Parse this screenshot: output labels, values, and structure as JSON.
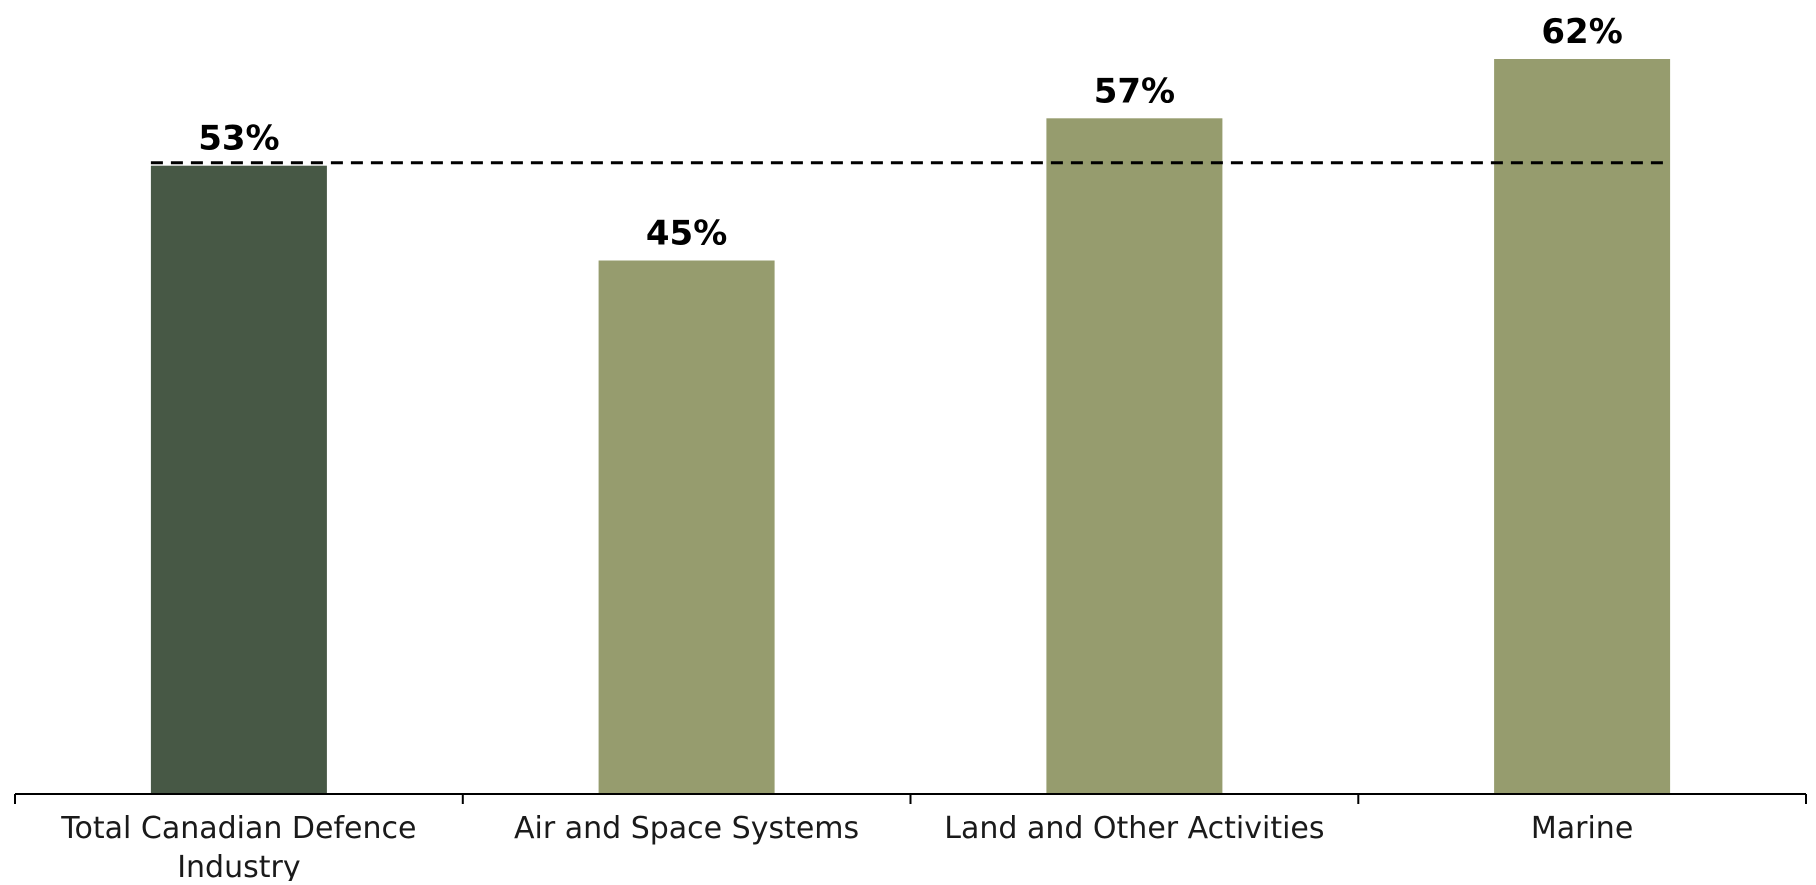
{
  "chart_data": {
    "type": "bar",
    "categories": [
      [
        "Total Canadian Defence",
        "Industry"
      ],
      [
        "Air and Space Systems"
      ],
      [
        "Land and Other Activities"
      ],
      [
        "Marine"
      ]
    ],
    "values": [
      53,
      45,
      57,
      62
    ],
    "value_labels": [
      "53%",
      "45%",
      "57%",
      "62%"
    ],
    "reference_line": {
      "value": 53,
      "style": "dashed"
    },
    "ylim": [
      0,
      62
    ],
    "title": "",
    "xlabel": "",
    "ylabel": "",
    "grid": false,
    "legend": "none",
    "colors": {
      "highlight": "#475845",
      "bars": "#969c6e",
      "axis": "#000000",
      "reference": "#000000"
    }
  }
}
